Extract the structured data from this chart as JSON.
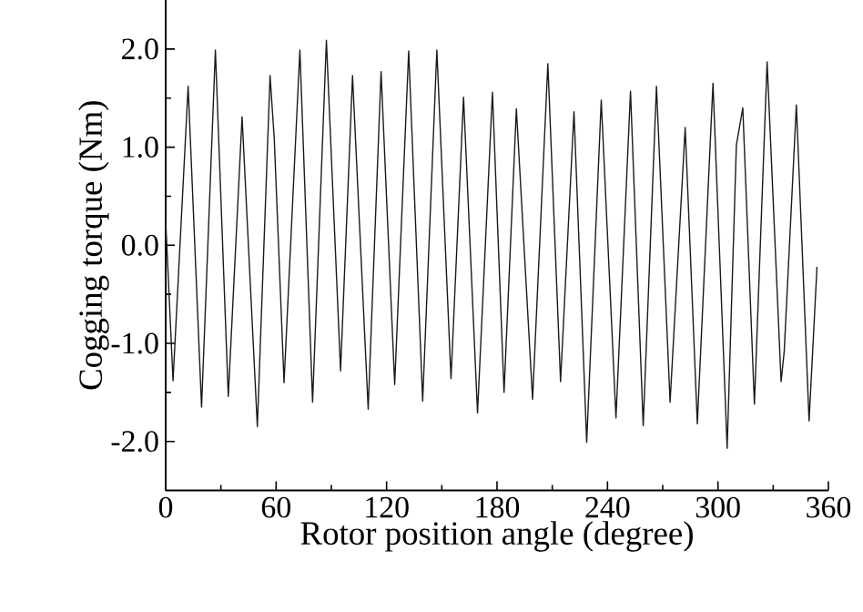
{
  "chart_data": {
    "type": "line",
    "xlabel": "Rotor position angle (degree)",
    "ylabel": "Cogging torque (Nm)",
    "color": "#1a1a1a",
    "x": [
      0,
      4,
      12.2,
      19.5,
      27,
      34,
      41.5,
      49.8,
      56.7,
      59,
      64.3,
      72.9,
      79.8,
      87.3,
      95,
      101.5,
      110,
      117,
      124.4,
      132,
      139.6,
      147.3,
      155,
      161.8,
      169.4,
      177.5,
      183.8,
      190.5,
      199.3,
      207.6,
      214.5,
      221.8,
      228.7,
      236.6,
      244.6,
      252.5,
      259.4,
      266.6,
      274,
      282.2,
      288.8,
      297.3,
      305,
      310,
      313.5,
      319.8,
      326.7,
      334.3,
      336,
      342.6,
      349.5,
      353.8
    ],
    "values": [
      0.25,
      -1.38,
      1.62,
      -1.65,
      1.99,
      -1.54,
      1.31,
      -1.85,
      1.73,
      1.08,
      -1.4,
      1.99,
      -1.6,
      2.09,
      -1.28,
      1.73,
      -1.67,
      1.77,
      -1.42,
      1.98,
      -1.59,
      1.99,
      -1.36,
      1.51,
      -1.71,
      1.56,
      -1.5,
      1.39,
      -1.57,
      1.85,
      -1.39,
      1.36,
      -2.01,
      1.48,
      -1.76,
      1.57,
      -1.84,
      1.62,
      -1.6,
      1.2,
      -1.82,
      1.65,
      -2.07,
      1.02,
      1.4,
      -1.62,
      1.87,
      -1.39,
      -1.08,
      1.43,
      -1.79,
      -0.22
    ],
    "xlim": [
      0,
      360
    ],
    "ylim": [
      -2.5,
      2.5
    ],
    "xticks": [
      0,
      {
        "value": 30,
        "label": null
      },
      60,
      {
        "value": 90,
        "label": null
      },
      120,
      {
        "value": 150,
        "label": null
      },
      180,
      {
        "value": 210,
        "label": null
      },
      240,
      {
        "value": 270,
        "label": null
      },
      300,
      {
        "value": 330,
        "label": null
      },
      360
    ],
    "yticks": [
      {
        "value": -2,
        "label": "-2.0"
      },
      {
        "value": -1.5,
        "label": null
      },
      {
        "value": -1,
        "label": "-1.0"
      },
      {
        "value": -0.5,
        "label": null
      },
      {
        "value": 0,
        "label": "0.0"
      },
      {
        "value": 0.5,
        "label": null
      },
      {
        "value": 1,
        "label": "1.0"
      },
      {
        "value": 1.5,
        "label": null
      },
      {
        "value": 2,
        "label": "2.0"
      }
    ]
  }
}
